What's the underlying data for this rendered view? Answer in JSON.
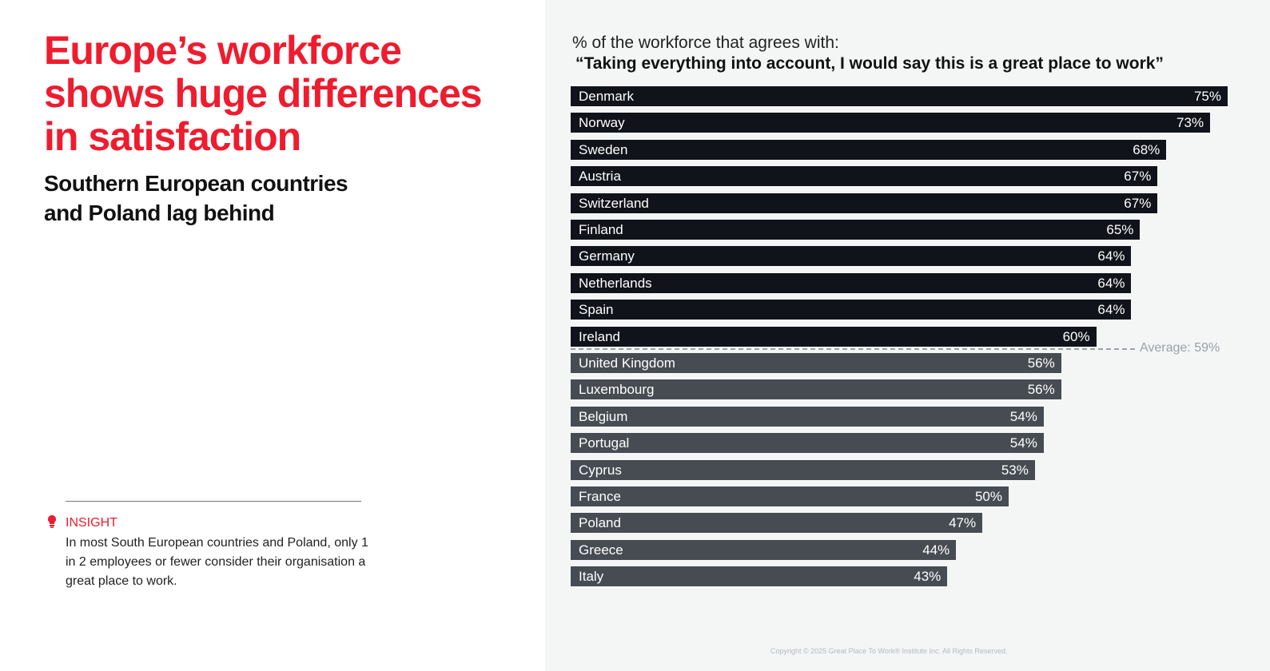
{
  "title": "Europe’s workforce shows huge differences in satisfaction",
  "subtitle": "Southern European countries and Poland lag behind",
  "insight": {
    "label": "INSIGHT",
    "text": "In most South European countries and Poland, only 1 in 2 employees or fewer consider their organisation a great place to work."
  },
  "copyright": "Copyright © 2025 Great Place To Work® Institute Inc. All Rights Reserved.",
  "colors": {
    "accent": "#ee1c2e",
    "above_avg": "#11131a",
    "below_avg": "#474c52"
  },
  "chart_data": {
    "type": "bar",
    "orientation": "horizontal",
    "title_line1": "% of the workforce that agrees with:",
    "title_line2": "“Taking everything into account, I would say this is a great place to work”",
    "categories": [
      "Denmark",
      "Norway",
      "Sweden",
      "Austria",
      "Switzerland",
      "Finland",
      "Germany",
      "Netherlands",
      "Spain",
      "Ireland",
      "United Kingdom",
      "Luxembourg",
      "Belgium",
      "Portugal",
      "Cyprus",
      "France",
      "Poland",
      "Greece",
      "Italy"
    ],
    "values": [
      75,
      73,
      68,
      67,
      67,
      65,
      64,
      64,
      64,
      60,
      56,
      56,
      54,
      54,
      53,
      50,
      47,
      44,
      43
    ],
    "value_labels": [
      "75%",
      "73%",
      "68%",
      "67%",
      "67%",
      "65%",
      "64%",
      "64%",
      "64%",
      "60%",
      "56%",
      "56%",
      "54%",
      "54%",
      "53%",
      "50%",
      "47%",
      "44%",
      "43%"
    ],
    "average": 59,
    "average_label": "Average: 59%",
    "xlim": [
      0,
      75
    ]
  }
}
